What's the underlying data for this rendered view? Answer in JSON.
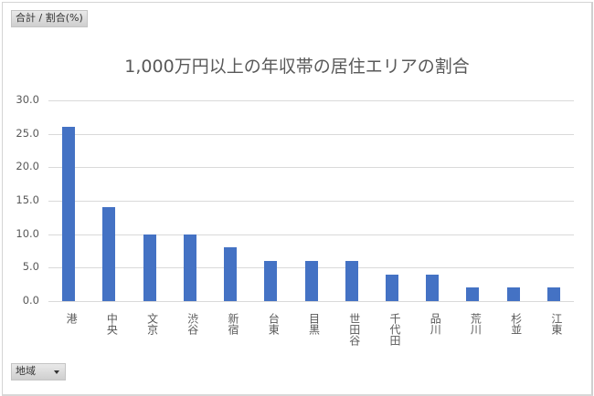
{
  "pivot": {
    "value_field_button": "合計 / 割合(%)",
    "axis_field_button": "地域"
  },
  "chart_data": {
    "type": "bar",
    "title": "1,000万円以上の年収帯の居住エリアの割合",
    "xlabel": "",
    "ylabel": "",
    "ylim": [
      0,
      30
    ],
    "yticks": [
      "0.0",
      "5.0",
      "10.0",
      "15.0",
      "20.0",
      "25.0",
      "30.0"
    ],
    "grid": true,
    "legend": "none",
    "bar_color": "#4472c4",
    "categories": [
      "港",
      "中央",
      "文京",
      "渋谷",
      "新宿",
      "台東",
      "目黒",
      "世田谷",
      "千代田",
      "品川",
      "荒川",
      "杉並",
      "江東"
    ],
    "values": [
      26,
      14,
      10,
      10,
      8,
      6,
      6,
      6,
      4,
      4,
      2,
      2,
      2
    ]
  }
}
